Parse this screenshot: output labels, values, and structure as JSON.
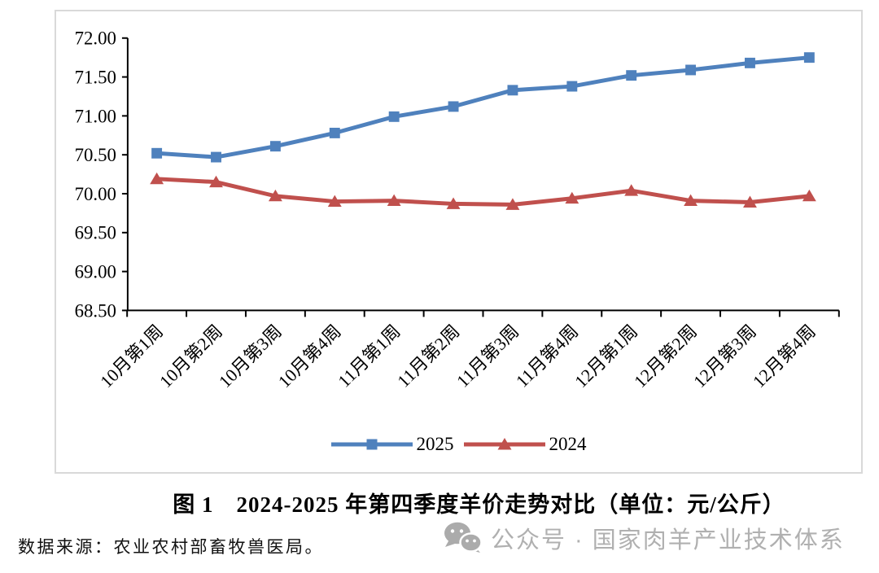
{
  "chart_data": {
    "type": "line",
    "title": "图 1　2024-2025 年第四季度羊价走势对比（单位：元/公斤）",
    "xlabel": "",
    "ylabel": "",
    "ylim": [
      68.5,
      72.0
    ],
    "ytick_step": 0.5,
    "ytick_labels": [
      "72.00",
      "71.50",
      "71.00",
      "70.50",
      "70.00",
      "69.50",
      "69.00",
      "68.50"
    ],
    "grid": false,
    "legend_position": "bottom",
    "categories": [
      "10月第1周",
      "10月第2周",
      "10月第3周",
      "10月第4周",
      "11月第1周",
      "11月第2周",
      "11月第3周",
      "11月第4周",
      "12月第1周",
      "12月第2周",
      "12月第3周",
      "12月第4周"
    ],
    "series": [
      {
        "name": "2025",
        "marker": "square",
        "color": "#4F81BD",
        "values": [
          70.52,
          70.47,
          70.61,
          70.78,
          70.99,
          71.12,
          71.33,
          71.38,
          71.52,
          71.59,
          71.68,
          71.75
        ]
      },
      {
        "name": "2024",
        "marker": "triangle",
        "color": "#C0504D",
        "values": [
          70.19,
          70.15,
          69.97,
          69.9,
          69.91,
          69.87,
          69.86,
          69.94,
          70.04,
          69.91,
          69.89,
          69.97
        ]
      }
    ]
  },
  "source_note": "数据来源：农业农村部畜牧兽医局。",
  "watermark": {
    "icon": "wechat-icon",
    "text": "公众号 · 国家肉羊产业技术体系",
    "color": "#b0b0b0"
  }
}
